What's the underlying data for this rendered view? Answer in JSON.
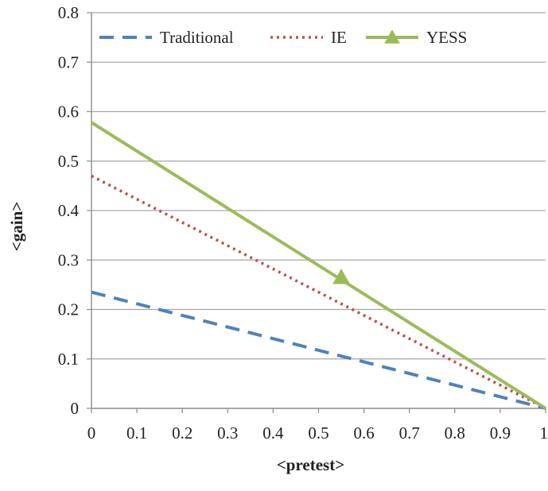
{
  "chart_data": {
    "type": "line",
    "title": "",
    "xlabel": "<pretest>",
    "ylabel": "<gain>",
    "xlim": [
      0,
      1
    ],
    "ylim": [
      0,
      0.8
    ],
    "x_ticks": [
      0,
      0.1,
      0.2,
      0.3,
      0.4,
      0.5,
      0.6,
      0.7,
      0.8,
      0.9,
      1
    ],
    "x_tick_labels": [
      "0",
      "0.1",
      "0.2",
      "0.3",
      "0.4",
      "0.5",
      "0.6",
      "0.7",
      "0.8",
      "0.9",
      "1"
    ],
    "y_ticks": [
      0,
      0.1,
      0.2,
      0.3,
      0.4,
      0.5,
      0.6,
      0.7,
      0.8
    ],
    "y_tick_labels": [
      "0",
      "0.1",
      "0.2",
      "0.3",
      "0.4",
      "0.5",
      "0.6",
      "0.7",
      "0.8"
    ],
    "grid": "horizontal",
    "legend_position": "top",
    "series": [
      {
        "name": "Traditional",
        "style": "dashed",
        "color": "#4f81bd",
        "points": [
          [
            0,
            0.235
          ],
          [
            1,
            0
          ]
        ],
        "markers": []
      },
      {
        "name": "IE",
        "style": "dotted",
        "color": "#c0504d",
        "points": [
          [
            0,
            0.47
          ],
          [
            1,
            0
          ]
        ],
        "markers": []
      },
      {
        "name": "YESS",
        "style": "solid",
        "color": "#9bbb59",
        "marker": "triangle",
        "points": [
          [
            0,
            0.578
          ],
          [
            1,
            0
          ]
        ],
        "markers": [
          [
            0.55,
            0.265
          ]
        ]
      }
    ]
  }
}
